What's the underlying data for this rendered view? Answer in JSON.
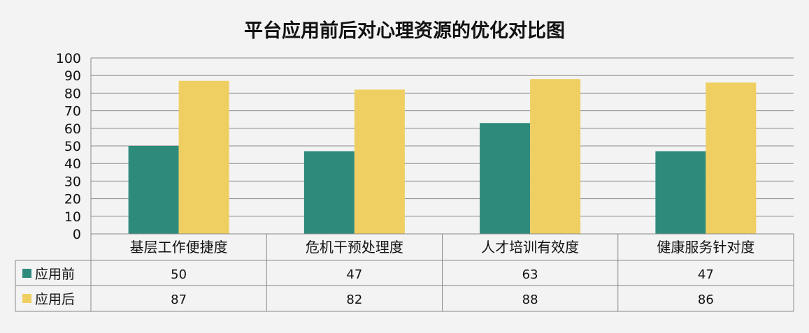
{
  "chart_data": {
    "type": "bar",
    "title": "平台应用前后对心理资源的优化对比图",
    "categories": [
      "基层工作便捷度",
      "危机干预处理度",
      "人才培训有效度",
      "健康服务针对度"
    ],
    "series": [
      {
        "name": "应用前",
        "values": [
          50,
          47,
          63,
          47
        ],
        "color": "#2e8b7c"
      },
      {
        "name": "应用后",
        "values": [
          87,
          82,
          88,
          86
        ],
        "color": "#f0cf62"
      }
    ],
    "ylim": [
      0,
      100
    ],
    "yticks": [
      0,
      10,
      20,
      30,
      40,
      50,
      60,
      70,
      80,
      90,
      100
    ],
    "grid": true,
    "legend": "data-table",
    "xlabel": "",
    "ylabel": ""
  }
}
